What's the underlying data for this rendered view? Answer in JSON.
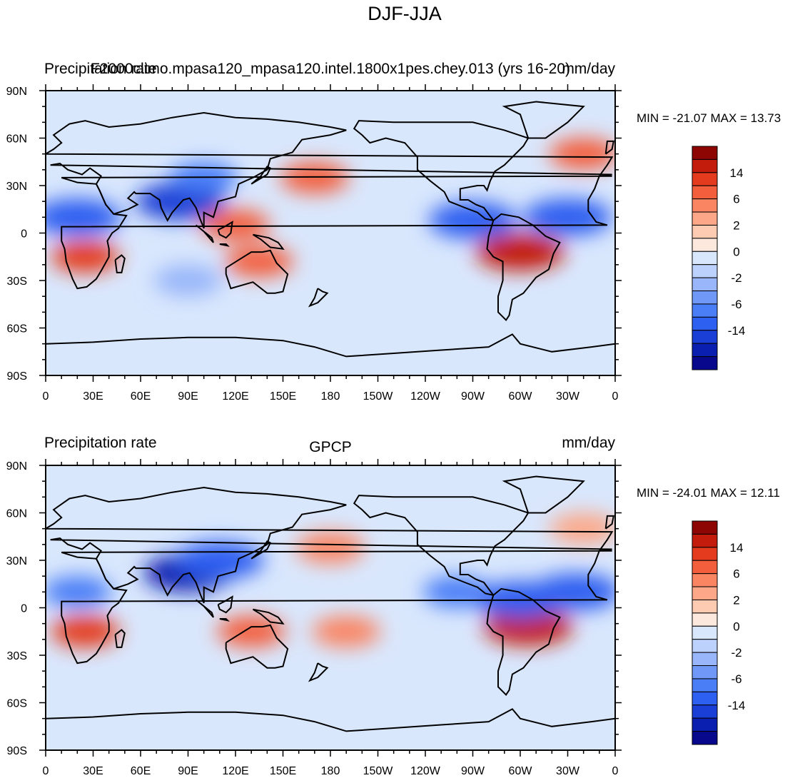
{
  "figure": {
    "title": "DJF-JJA"
  },
  "colors": {
    "levels": [
      "#08088c",
      "#0a1fb0",
      "#1a3fd6",
      "#2d5ff0",
      "#4a7ef7",
      "#7098f7",
      "#98b6f9",
      "#bcd1fb",
      "#d9e7fd",
      "#fde8dd",
      "#fdcab2",
      "#fca888",
      "#f98563",
      "#f35f3d",
      "#e43a1e",
      "#c31b0c",
      "#8e0604"
    ],
    "land_outline": "#000000",
    "ocean_base": "#d9e7fd"
  },
  "colorbar": {
    "labels": [
      "14",
      "6",
      "2",
      "0",
      "-2",
      "-6",
      "-14"
    ]
  },
  "axes": {
    "lat_ticks": [
      "90N",
      "60N",
      "30N",
      "0",
      "30S",
      "60S",
      "90S"
    ],
    "lon_ticks": [
      "0",
      "30E",
      "60E",
      "90E",
      "120E",
      "150E",
      "180",
      "150W",
      "120W",
      "90W",
      "60W",
      "30W",
      "0"
    ]
  },
  "panels": [
    {
      "left_title": "Precipitation rate",
      "center_title": "F2000climo.mpasa120_mpasa120.intel.1800x1pes.chey.013 (yrs 16-20)",
      "right_title": "mm/day",
      "stats": "MIN = -21.07 MAX =  13.73"
    },
    {
      "left_title": "Precipitation rate",
      "center_title": "GPCP",
      "right_title": "mm/day",
      "stats": "MIN = -24.01 MAX =  12.11"
    }
  ],
  "chart_data": [
    {
      "type": "heatmap",
      "title": "F2000climo.mpasa120_mpasa120.intel.1800x1pes.chey.013 (yrs 16-20)",
      "field": "Precipitation rate DJF-JJA difference",
      "units": "mm/day",
      "min": -21.07,
      "max": 13.73,
      "xlim": [
        0,
        360
      ],
      "ylim": [
        -90,
        90
      ],
      "projection": "cylindrical equidistant",
      "contour_levels": [
        -14,
        -10,
        -8,
        -6,
        -4,
        -3,
        -2,
        -1,
        0,
        1,
        2,
        3,
        4,
        6,
        8,
        10,
        14
      ],
      "features": [
        {
          "lon": 20,
          "lat": 10,
          "value": -8
        },
        {
          "lon": 330,
          "lat": 10,
          "value": -8
        },
        {
          "lon": 85,
          "lat": 20,
          "value": -10
        },
        {
          "lon": 100,
          "lat": 35,
          "value": -6
        },
        {
          "lon": 25,
          "lat": -15,
          "value": 6
        },
        {
          "lon": 300,
          "lat": -12,
          "value": 8
        },
        {
          "lon": 135,
          "lat": -18,
          "value": 4
        },
        {
          "lon": 170,
          "lat": 35,
          "value": 4
        },
        {
          "lon": 340,
          "lat": 50,
          "value": 4
        },
        {
          "lon": 120,
          "lat": 5,
          "value": 4
        },
        {
          "lon": 270,
          "lat": 8,
          "value": -8
        },
        {
          "lon": 90,
          "lat": -30,
          "value": -3
        }
      ]
    },
    {
      "type": "heatmap",
      "title": "GPCP",
      "field": "Precipitation rate DJF-JJA difference",
      "units": "mm/day",
      "min": -24.01,
      "max": 12.11,
      "xlim": [
        0,
        360
      ],
      "ylim": [
        -90,
        90
      ],
      "projection": "cylindrical equidistant",
      "contour_levels": [
        -14,
        -10,
        -8,
        -6,
        -4,
        -3,
        -2,
        -1,
        0,
        1,
        2,
        3,
        4,
        6,
        8,
        10,
        14
      ],
      "features": [
        {
          "lon": 20,
          "lat": 10,
          "value": -6
        },
        {
          "lon": 335,
          "lat": 10,
          "value": -8
        },
        {
          "lon": 90,
          "lat": 22,
          "value": -12
        },
        {
          "lon": 110,
          "lat": 30,
          "value": -8
        },
        {
          "lon": 25,
          "lat": -15,
          "value": 6
        },
        {
          "lon": 305,
          "lat": -12,
          "value": 8
        },
        {
          "lon": 130,
          "lat": -15,
          "value": 4
        },
        {
          "lon": 190,
          "lat": -15,
          "value": 3
        },
        {
          "lon": 180,
          "lat": 38,
          "value": 3
        },
        {
          "lon": 260,
          "lat": 10,
          "value": -6
        },
        {
          "lon": 300,
          "lat": 5,
          "value": -8
        },
        {
          "lon": 340,
          "lat": 50,
          "value": 2
        }
      ]
    }
  ]
}
